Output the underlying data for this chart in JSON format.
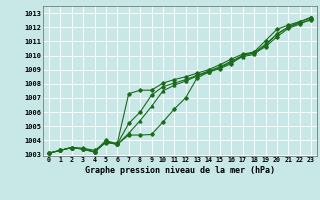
{
  "xlabel": "Graphe pression niveau de la mer (hPa)",
  "ylim": [
    1003,
    1013.5
  ],
  "xlim": [
    -0.5,
    23.5
  ],
  "yticks": [
    1003,
    1004,
    1005,
    1006,
    1007,
    1008,
    1009,
    1010,
    1011,
    1012,
    1013
  ],
  "xticks": [
    0,
    1,
    2,
    3,
    4,
    5,
    6,
    7,
    8,
    9,
    10,
    11,
    12,
    13,
    14,
    15,
    16,
    17,
    18,
    19,
    20,
    21,
    22,
    23
  ],
  "bg_color": "#c8e8e8",
  "grid_color": "#ffffff",
  "line_color": "#1a6b1a",
  "line1": [
    1003.1,
    1003.3,
    1003.5,
    1003.45,
    1003.3,
    1003.85,
    1003.8,
    1007.3,
    1007.55,
    1007.55,
    1008.05,
    1008.3,
    1008.5,
    1008.75,
    1009.0,
    1009.35,
    1009.75,
    1010.1,
    1010.25,
    1011.05,
    1011.85,
    1012.15,
    1012.4,
    1012.65
  ],
  "line2": [
    1003.1,
    1003.3,
    1003.5,
    1003.4,
    1003.2,
    1004.0,
    1003.75,
    1005.2,
    1006.0,
    1007.2,
    1007.8,
    1008.05,
    1008.3,
    1008.6,
    1008.9,
    1009.2,
    1009.6,
    1010.0,
    1010.2,
    1010.8,
    1011.5,
    1012.0,
    1012.3,
    1012.5
  ],
  "line3": [
    1003.1,
    1003.3,
    1003.5,
    1003.38,
    1003.18,
    1003.88,
    1003.72,
    1004.5,
    1005.4,
    1006.4,
    1007.5,
    1007.9,
    1008.2,
    1008.55,
    1008.85,
    1009.15,
    1009.52,
    1009.92,
    1010.08,
    1010.72,
    1011.52,
    1012.02,
    1012.38,
    1012.72
  ],
  "line4": [
    1003.1,
    1003.3,
    1003.5,
    1003.38,
    1003.18,
    1003.88,
    1003.72,
    1004.38,
    1004.38,
    1004.42,
    1005.3,
    1006.22,
    1007.02,
    1008.42,
    1008.82,
    1009.08,
    1009.42,
    1010.02,
    1010.18,
    1010.62,
    1011.32,
    1011.92,
    1012.22,
    1012.58
  ]
}
